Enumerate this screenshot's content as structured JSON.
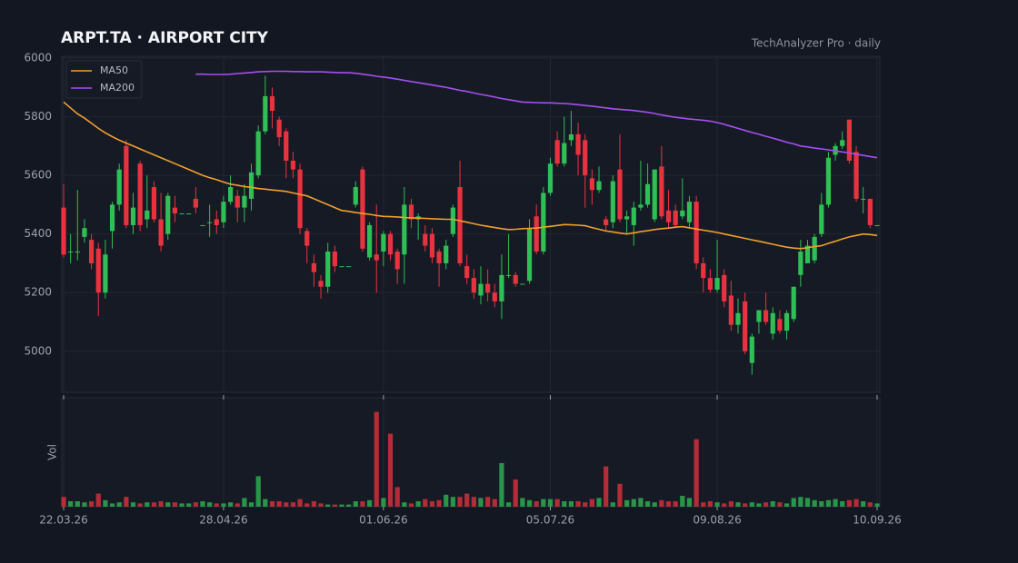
{
  "chart_data": {
    "type": "candlestick",
    "title": "ARPT.TA  ·  AIRPORT CITY",
    "subtitle": "TechAnalyzer Pro · daily",
    "categories": [
      "22.03.26",
      null,
      null,
      null,
      null,
      null,
      null,
      null,
      null,
      null,
      null,
      null,
      null,
      null,
      null,
      null,
      null,
      null,
      null,
      null,
      null,
      null,
      null,
      "28.04.26",
      null,
      null,
      null,
      null,
      null,
      null,
      null,
      null,
      null,
      null,
      null,
      null,
      null,
      null,
      null,
      null,
      null,
      null,
      null,
      null,
      null,
      null,
      "01.06.26",
      null,
      null,
      null,
      null,
      null,
      null,
      null,
      null,
      null,
      null,
      null,
      null,
      null,
      null,
      null,
      null,
      null,
      null,
      null,
      null,
      null,
      null,
      null,
      "05.07.26",
      null,
      null,
      null,
      null,
      null,
      null,
      null,
      null,
      null,
      null,
      null,
      null,
      null,
      null,
      null,
      null,
      null,
      null,
      null,
      null,
      null,
      null,
      null,
      "09.08.26",
      null,
      null,
      null,
      null,
      null,
      null,
      null,
      null,
      null,
      null,
      null,
      null,
      null,
      null,
      null,
      null,
      null,
      null,
      null,
      null,
      null,
      null,
      "10.09.26"
    ],
    "open": [
      5490,
      5340,
      5340,
      5390,
      5380,
      5350,
      5200,
      5410,
      5500,
      5700,
      5430,
      5640,
      5450,
      5560,
      5450,
      5400,
      5490,
      5470,
      5470,
      5520,
      5430,
      5440,
      5450,
      5440,
      5510,
      5530,
      5490,
      5520,
      5600,
      5750,
      5870,
      5790,
      5750,
      5650,
      5620,
      5410,
      5300,
      5240,
      5220,
      5340,
      5290,
      5290,
      5500,
      5620,
      5320,
      5330,
      5340,
      5400,
      5340,
      5330,
      5500,
      5450,
      5400,
      5400,
      5340,
      5300,
      5400,
      5560,
      5290,
      5250,
      5190,
      5230,
      5200,
      5170,
      5260,
      5260,
      5230,
      5240,
      5460,
      5340,
      5540,
      5720,
      5640,
      5720,
      5740,
      5720,
      5590,
      5550,
      5450,
      5440,
      5620,
      5450,
      5430,
      5490,
      5500,
      5450,
      5630,
      5480,
      5480,
      5460,
      5440,
      5510,
      5300,
      5250,
      5210,
      5260,
      5190,
      5090,
      5170,
      4960,
      5100,
      5140,
      5060,
      5110,
      5070,
      5110,
      5260,
      5300,
      5310,
      5400,
      5500,
      5670,
      5700,
      5790,
      5680,
      5520,
      5520,
      5430
    ],
    "high": [
      5570,
      5400,
      5550,
      5450,
      5400,
      5370,
      5380,
      5510,
      5640,
      5720,
      5540,
      5650,
      5600,
      5580,
      5540,
      5540,
      5530,
      5470,
      5470,
      5560,
      5430,
      5500,
      5480,
      5530,
      5600,
      5550,
      5570,
      5640,
      5770,
      5940,
      5900,
      5800,
      5760,
      5680,
      5640,
      5420,
      5330,
      5260,
      5370,
      5360,
      5290,
      5290,
      5580,
      5630,
      5440,
      5500,
      5410,
      5410,
      5350,
      5560,
      5520,
      5470,
      5430,
      5420,
      5350,
      5380,
      5500,
      5650,
      5330,
      5280,
      5290,
      5280,
      5230,
      5330,
      5400,
      5270,
      5230,
      5450,
      5500,
      5560,
      5660,
      5750,
      5800,
      5820,
      5780,
      5740,
      5620,
      5630,
      5460,
      5600,
      5740,
      5480,
      5510,
      5650,
      5640,
      5620,
      5700,
      5550,
      5500,
      5590,
      5530,
      5530,
      5320,
      5280,
      5380,
      5280,
      5240,
      5180,
      5200,
      5060,
      5140,
      5200,
      5150,
      5140,
      5140,
      5220,
      5380,
      5380,
      5400,
      5540,
      5680,
      5710,
      5750,
      5790,
      5700,
      5560,
      5520,
      5430
    ],
    "low": [
      5320,
      5300,
      5310,
      5370,
      5280,
      5120,
      5180,
      5350,
      5480,
      5420,
      5400,
      5410,
      5420,
      5440,
      5340,
      5380,
      5440,
      5470,
      5470,
      5470,
      5430,
      5390,
      5400,
      5420,
      5500,
      5440,
      5440,
      5480,
      5590,
      5740,
      5760,
      5700,
      5590,
      5590,
      5400,
      5300,
      5220,
      5180,
      5200,
      5270,
      5290,
      5290,
      5490,
      5340,
      5310,
      5200,
      5290,
      5310,
      5230,
      5230,
      5420,
      5380,
      5340,
      5300,
      5220,
      5280,
      5390,
      5290,
      5230,
      5180,
      5160,
      5170,
      5150,
      5110,
      5250,
      5220,
      5230,
      5230,
      5330,
      5330,
      5530,
      5630,
      5630,
      5700,
      5600,
      5490,
      5500,
      5540,
      5410,
      5420,
      5440,
      5400,
      5360,
      5480,
      5490,
      5440,
      5450,
      5420,
      5420,
      5450,
      5420,
      5280,
      5200,
      5200,
      5200,
      5150,
      5070,
      5060,
      4990,
      4920,
      5060,
      5090,
      5040,
      5060,
      5040,
      5100,
      5220,
      5300,
      5300,
      5390,
      5490,
      5650,
      5690,
      5640,
      5510,
      5470,
      5420,
      5430
    ],
    "close": [
      5330,
      5340,
      5340,
      5420,
      5300,
      5200,
      5330,
      5500,
      5620,
      5430,
      5490,
      5430,
      5480,
      5450,
      5360,
      5530,
      5470,
      5470,
      5470,
      5490,
      5430,
      5440,
      5430,
      5510,
      5560,
      5490,
      5530,
      5610,
      5750,
      5870,
      5820,
      5730,
      5650,
      5620,
      5420,
      5360,
      5270,
      5220,
      5340,
      5290,
      5290,
      5290,
      5560,
      5350,
      5430,
      5310,
      5400,
      5330,
      5280,
      5500,
      5450,
      5460,
      5360,
      5320,
      5300,
      5360,
      5490,
      5300,
      5250,
      5200,
      5230,
      5200,
      5170,
      5260,
      5260,
      5230,
      5230,
      5420,
      5340,
      5540,
      5640,
      5640,
      5710,
      5740,
      5670,
      5600,
      5550,
      5580,
      5430,
      5580,
      5450,
      5460,
      5490,
      5500,
      5570,
      5620,
      5460,
      5440,
      5430,
      5480,
      5510,
      5300,
      5250,
      5210,
      5250,
      5170,
      5090,
      5130,
      5000,
      5050,
      5140,
      5100,
      5130,
      5070,
      5130,
      5220,
      5340,
      5360,
      5390,
      5500,
      5660,
      5700,
      5720,
      5650,
      5520,
      5520,
      5430,
      5430
    ],
    "up_color": "#2fbf55",
    "down_color": "#e8333f",
    "series": [
      {
        "name": "MA50",
        "color": "#f0a02c",
        "values": [
          5850,
          5830,
          5810,
          5795,
          5778,
          5760,
          5745,
          5732,
          5720,
          5710,
          5700,
          5690,
          5680,
          5670,
          5660,
          5650,
          5640,
          5630,
          5620,
          5610,
          5600,
          5592,
          5585,
          5577,
          5570,
          5566,
          5562,
          5559,
          5555,
          5553,
          5550,
          5548,
          5545,
          5540,
          5535,
          5530,
          5520,
          5510,
          5500,
          5490,
          5480,
          5477,
          5473,
          5470,
          5467,
          5463,
          5460,
          5459,
          5458,
          5456,
          5455,
          5454,
          5453,
          5452,
          5451,
          5450,
          5450,
          5445,
          5440,
          5435,
          5430,
          5426,
          5422,
          5418,
          5415,
          5416,
          5418,
          5419,
          5420,
          5423,
          5426,
          5429,
          5432,
          5431,
          5430,
          5428,
          5422,
          5416,
          5410,
          5407,
          5403,
          5400,
          5404,
          5408,
          5411,
          5415,
          5418,
          5420,
          5423,
          5425,
          5421,
          5417,
          5413,
          5409,
          5405,
          5400,
          5395,
          5390,
          5385,
          5380,
          5375,
          5370,
          5365,
          5360,
          5355,
          5352,
          5350,
          5353,
          5357,
          5360,
          5368,
          5375,
          5383,
          5390,
          5395,
          5400,
          5398,
          5395
        ]
      },
      {
        "name": "MA200",
        "color": "#a64ff0",
        "values": [
          null,
          null,
          null,
          null,
          null,
          null,
          null,
          null,
          null,
          null,
          null,
          null,
          null,
          null,
          null,
          null,
          null,
          null,
          null,
          5945,
          5945,
          5944,
          5944,
          5944,
          5945,
          5947,
          5949,
          5951,
          5953,
          5954,
          5955,
          5955,
          5955,
          5954,
          5954,
          5953,
          5953,
          5953,
          5952,
          5951,
          5950,
          5950,
          5948,
          5945,
          5942,
          5938,
          5935,
          5932,
          5928,
          5924,
          5920,
          5916,
          5912,
          5908,
          5904,
          5900,
          5895,
          5890,
          5886,
          5881,
          5876,
          5872,
          5867,
          5862,
          5858,
          5854,
          5850,
          5849,
          5848,
          5847,
          5847,
          5846,
          5845,
          5843,
          5841,
          5838,
          5836,
          5833,
          5830,
          5827,
          5825,
          5823,
          5821,
          5818,
          5815,
          5811,
          5806,
          5802,
          5798,
          5795,
          5792,
          5790,
          5788,
          5785,
          5780,
          5774,
          5767,
          5760,
          5753,
          5746,
          5740,
          5733,
          5727,
          5720,
          5713,
          5707,
          5700,
          5697,
          5693,
          5690,
          5687,
          5683,
          5680,
          5676,
          5672,
          5668,
          5664,
          5660
        ]
      }
    ],
    "ylim": [
      4860,
      6006
    ],
    "yticks": [
      5000,
      5200,
      5400,
      5600,
      5800,
      6000
    ],
    "grid": true,
    "legend": "upper left",
    "volume_label": "Vol",
    "volume_ylim": [
      0,
      100
    ],
    "volume": [
      9,
      5,
      5,
      4,
      5,
      12,
      6,
      3,
      4,
      9,
      4,
      3,
      4,
      4,
      5,
      4,
      4,
      3,
      3,
      4,
      5,
      4,
      3,
      3,
      4,
      3,
      8,
      4,
      28,
      7,
      5,
      5,
      4,
      4,
      7,
      3,
      5,
      3,
      2,
      2,
      2,
      2,
      5,
      5,
      6,
      87,
      8,
      67,
      18,
      4,
      3,
      5,
      7,
      5,
      6,
      11,
      9,
      9,
      12,
      9,
      8,
      9,
      7,
      40,
      4,
      25,
      8,
      6,
      5,
      7,
      7,
      7,
      5,
      5,
      5,
      4,
      7,
      8,
      37,
      4,
      21,
      6,
      7,
      8,
      5,
      4,
      6,
      5,
      5,
      10,
      8,
      62,
      4,
      5,
      4,
      3,
      5,
      4,
      3,
      4,
      3,
      4,
      5,
      4,
      3,
      8,
      9,
      8,
      6,
      5,
      6,
      7,
      5,
      6,
      7,
      5,
      4,
      3
    ]
  }
}
